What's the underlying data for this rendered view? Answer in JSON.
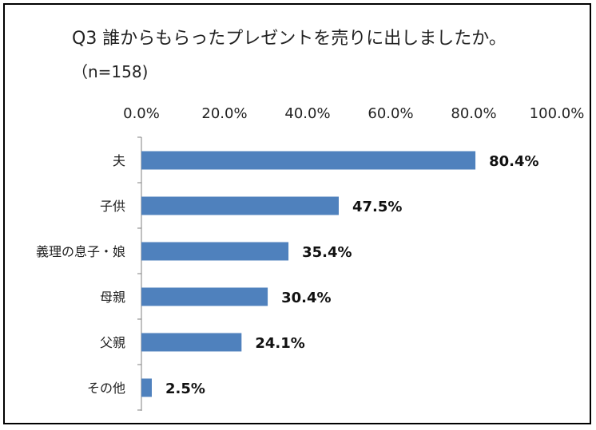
{
  "chart_data": {
    "type": "bar",
    "orientation": "horizontal",
    "title": "Q3 誰からもらったプレゼントを売りに出しましたか。",
    "subtitle": "（n=158)",
    "categories": [
      "夫",
      "子供",
      "義理の息子・娘",
      "母親",
      "父親",
      "その他"
    ],
    "values": [
      80.4,
      47.5,
      35.4,
      30.4,
      24.1,
      2.5
    ],
    "data_labels": [
      "80.4%",
      "47.5%",
      "35.4%",
      "30.4%",
      "24.1%",
      "2.5%"
    ],
    "x_ticks": [
      "0.0%",
      "20.0%",
      "40.0%",
      "60.0%",
      "80.0%",
      "100.0%"
    ],
    "xlim": [
      0,
      100
    ],
    "axis_position": "top",
    "grid": false,
    "legend": "none",
    "bar_color": "#4f81bd"
  }
}
